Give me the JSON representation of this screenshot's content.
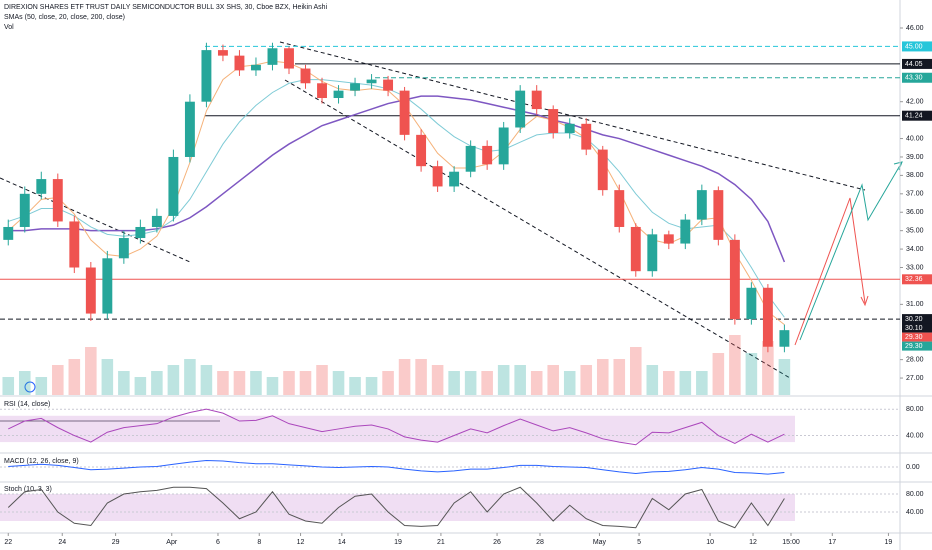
{
  "chart_data": {
    "type": "candlestick",
    "title": "DIREXION SHARES ETF TRUST DAILY SEMICONDUCTOR BULL 3X SHS, 30, Cboe BZX, Heikin Ashi",
    "sma_label": "SMAs (50, close, 20, close, 200, close)",
    "volume_label": "Vol",
    "up_color": "#26a69a",
    "down_color": "#ef5350",
    "xlim": [
      -0.5,
      54
    ],
    "ylim": [
      26.08,
      47.52
    ],
    "xticks": [
      {
        "value": 0,
        "label": "22"
      },
      {
        "value": 3.27,
        "label": "24"
      },
      {
        "value": 6.5,
        "label": "29"
      },
      {
        "value": 9.9,
        "label": "Apr"
      },
      {
        "value": 12.7,
        "label": "6"
      },
      {
        "value": 15.2,
        "label": "8"
      },
      {
        "value": 17.7,
        "label": "12"
      },
      {
        "value": 20.2,
        "label": "14"
      },
      {
        "value": 23.6,
        "label": "19"
      },
      {
        "value": 26.2,
        "label": "21"
      },
      {
        "value": 29.6,
        "label": "26"
      },
      {
        "value": 32.2,
        "label": "28"
      },
      {
        "value": 35.8,
        "label": "May"
      },
      {
        "value": 38.2,
        "label": "5"
      },
      {
        "value": 42.5,
        "label": "10"
      },
      {
        "value": 45.1,
        "label": "12"
      },
      {
        "value": 47.4,
        "label": "15:00"
      },
      {
        "value": 49.9,
        "label": "17"
      },
      {
        "value": 53.3,
        "label": "19"
      }
    ],
    "yticks": [
      {
        "value": 46,
        "label": "46.00"
      },
      {
        "value": 42,
        "label": "42.00"
      },
      {
        "value": 40,
        "label": "40.00"
      },
      {
        "value": 39,
        "label": "39.00"
      },
      {
        "value": 38,
        "label": "38.00"
      },
      {
        "value": 37,
        "label": "37.00"
      },
      {
        "value": 36,
        "label": "36.00"
      },
      {
        "value": 35,
        "label": "35.00"
      },
      {
        "value": 34,
        "label": "34.00"
      },
      {
        "value": 33,
        "label": "33.00"
      },
      {
        "value": 31,
        "label": "31.00"
      },
      {
        "value": 28,
        "label": "28.00"
      },
      {
        "value": 27,
        "label": "27.00"
      }
    ],
    "open": [
      34.5,
      35.2,
      37.0,
      37.8,
      35.5,
      33.0,
      30.5,
      33.5,
      34.6,
      35.2,
      35.8,
      39.0,
      42.0,
      44.8,
      44.5,
      43.7,
      44.0,
      44.9,
      43.8,
      43.0,
      42.2,
      42.6,
      43.0,
      43.2,
      42.6,
      40.2,
      38.5,
      37.4,
      38.2,
      39.6,
      38.6,
      40.6,
      42.6,
      41.6,
      40.3,
      40.8,
      39.4,
      37.2,
      35.2,
      32.8,
      34.8,
      34.3,
      35.6,
      37.2,
      34.5,
      30.2,
      31.9,
      28.7
    ],
    "high": [
      35.6,
      37.4,
      38.2,
      38.1,
      35.8,
      33.3,
      33.9,
      35.0,
      35.6,
      36.2,
      39.4,
      42.4,
      45.2,
      45.1,
      44.8,
      44.4,
      45.2,
      45.0,
      44.0,
      43.3,
      42.9,
      43.3,
      43.5,
      43.4,
      42.8,
      40.5,
      38.8,
      38.5,
      39.9,
      39.9,
      40.9,
      42.9,
      42.9,
      41.8,
      41.1,
      41.1,
      39.6,
      37.5,
      35.4,
      35.1,
      35.0,
      35.9,
      37.5,
      37.4,
      34.8,
      32.2,
      32.1,
      29.9
    ],
    "low": [
      34.2,
      34.9,
      36.7,
      35.2,
      32.7,
      30.1,
      30.2,
      33.2,
      34.3,
      34.9,
      35.5,
      38.7,
      41.7,
      44.2,
      43.4,
      43.4,
      43.7,
      43.5,
      42.7,
      41.9,
      41.9,
      42.3,
      42.7,
      42.3,
      39.9,
      38.2,
      37.1,
      37.1,
      37.9,
      38.3,
      38.3,
      40.3,
      41.3,
      40.0,
      40.0,
      39.1,
      36.9,
      34.9,
      32.5,
      32.5,
      34.0,
      34.0,
      35.3,
      34.2,
      29.9,
      29.9,
      28.4,
      28.4
    ],
    "close": [
      35.2,
      37.0,
      37.8,
      35.5,
      33.0,
      30.5,
      33.5,
      34.6,
      35.2,
      35.8,
      39.0,
      42.0,
      44.8,
      44.5,
      43.7,
      44.0,
      44.9,
      43.8,
      43.0,
      42.2,
      42.6,
      43.0,
      43.2,
      42.6,
      40.2,
      38.5,
      37.4,
      38.2,
      39.6,
      38.6,
      40.6,
      42.6,
      41.6,
      40.3,
      40.8,
      39.4,
      37.2,
      35.2,
      32.8,
      34.8,
      34.3,
      35.6,
      37.2,
      34.5,
      30.2,
      31.9,
      28.7,
      29.6
    ],
    "series": [
      {
        "color": "#7e57c2",
        "values": [
          35.0,
          35.0,
          35.1,
          35.1,
          35.1,
          35.0,
          35.0,
          35.0,
          35.0,
          35.1,
          35.3,
          35.7,
          36.3,
          37.0,
          37.7,
          38.4,
          39.1,
          39.7,
          40.2,
          40.7,
          41.0,
          41.3,
          41.6,
          41.9,
          42.1,
          42.3,
          42.3,
          42.2,
          42.1,
          41.9,
          41.7,
          41.5,
          41.3,
          41.0,
          40.8,
          40.5,
          40.2,
          40.0,
          39.7,
          39.4,
          39.1,
          38.8,
          38.5,
          38.1,
          37.5,
          36.7,
          35.5,
          33.3
        ]
      },
      {
        "color": "#7fcbd6",
        "values": [
          35.5,
          35.8,
          36.2,
          36.2,
          35.8,
          35.2,
          34.8,
          34.7,
          34.8,
          35.0,
          35.6,
          36.7,
          38.2,
          39.7,
          40.9,
          41.8,
          42.5,
          43.0,
          43.2,
          43.2,
          43.1,
          43.0,
          42.9,
          42.7,
          42.3,
          41.6,
          40.8,
          40.1,
          39.6,
          39.3,
          39.4,
          39.8,
          40.2,
          40.3,
          40.3,
          40.0,
          39.2,
          38.2,
          37.0,
          36.0,
          35.4,
          35.1,
          35.2,
          35.3,
          34.4,
          33.0,
          31.5,
          30.3
        ]
      },
      {
        "color": "#f5b27a",
        "values": [
          35.0,
          35.8,
          36.7,
          36.8,
          35.9,
          34.5,
          33.7,
          33.6,
          34.0,
          34.7,
          36.3,
          38.7,
          41.5,
          43.2,
          43.9,
          44.0,
          44.2,
          44.1,
          43.7,
          43.1,
          42.7,
          42.6,
          42.7,
          42.6,
          41.8,
          40.5,
          39.2,
          38.4,
          38.4,
          38.6,
          39.3,
          40.5,
          41.2,
          41.0,
          40.6,
          40.0,
          38.8,
          37.2,
          35.3,
          34.5,
          34.3,
          34.7,
          35.6,
          35.7,
          33.8,
          32.3,
          30.6,
          29.9
        ]
      }
    ],
    "volume": [
      3,
      4,
      3,
      5,
      6,
      8,
      6,
      4,
      3,
      4,
      5,
      6,
      5,
      4,
      4,
      4,
      3,
      4,
      4,
      5,
      4,
      3,
      3,
      4,
      6,
      6,
      5,
      4,
      4,
      4,
      5,
      5,
      4,
      5,
      4,
      5,
      6,
      6,
      8,
      5,
      4,
      4,
      4,
      7,
      10,
      7,
      9,
      6
    ],
    "levels": [
      {
        "value": 45,
        "label": "45.00",
        "color": "#26c6da",
        "style": "dashed"
      },
      {
        "value": 44.05,
        "label": "44.05",
        "color": "#131722",
        "style": "solid"
      },
      {
        "value": 43.3,
        "label": "43.30",
        "color": "#26a69a",
        "style": "dashed"
      },
      {
        "value": 41.24,
        "label": "41.24",
        "color": "#131722",
        "style": "solid"
      },
      {
        "value": 32.36,
        "label": "32.36",
        "color": "#ef5350",
        "style": "solid"
      },
      {
        "value": 30.2,
        "label": "30.20",
        "color": "#131722",
        "style": "dashed"
      }
    ],
    "tags": [
      {
        "value": 30.1,
        "label": "30.10",
        "color": "#131722"
      },
      {
        "value": 29.3,
        "label": "29.30",
        "color": "#ef5350"
      },
      {
        "value": 29.3,
        "label": "29.30",
        "color": "#26a69a"
      }
    ],
    "rsi": {
      "title": "RSI (14, close)",
      "color": "#ab47bc",
      "ylim": [
        18,
        97
      ],
      "band": [
        30,
        70
      ],
      "yticks": [
        {
          "value": 80,
          "label": "80.00"
        },
        {
          "value": 40,
          "label": "40.00"
        }
      ],
      "values": [
        50,
        62,
        66,
        52,
        40,
        30,
        45,
        52,
        55,
        58,
        68,
        75,
        80,
        74,
        62,
        63,
        70,
        58,
        52,
        46,
        50,
        54,
        56,
        50,
        38,
        33,
        30,
        40,
        50,
        44,
        55,
        65,
        56,
        47,
        52,
        44,
        35,
        30,
        26,
        45,
        44,
        52,
        60,
        40,
        28,
        42,
        30,
        42
      ]
    },
    "macd": {
      "title": "MACD (12, 26, close, 9)",
      "color": "#2962ff",
      "ylim": [
        -2.2,
        2.2
      ],
      "yticks": [
        {
          "value": 0,
          "label": "0.00"
        }
      ],
      "values": [
        0.1,
        0.3,
        0.5,
        0.3,
        -0.1,
        -0.5,
        -0.4,
        -0.2,
        0,
        0.1,
        0.5,
        0.9,
        1.2,
        1.1,
        0.8,
        0.6,
        0.6,
        0.4,
        0.2,
        0,
        -0.1,
        0,
        0.1,
        0,
        -0.4,
        -0.7,
        -0.9,
        -0.7,
        -0.4,
        -0.4,
        -0.1,
        0.3,
        0.3,
        0.1,
        0,
        -0.1,
        -0.5,
        -0.9,
        -1.2,
        -0.9,
        -0.8,
        -0.5,
        -0.1,
        -0.4,
        -1.0,
        -1.1,
        -1.3,
        -1.0
      ]
    },
    "stoch": {
      "title": "Stoch (10, 3, 3)",
      "color": "#555555",
      "ylim": [
        0,
        100
      ],
      "band": [
        20,
        80
      ],
      "yticks": [
        {
          "value": 80,
          "label": "80.00"
        },
        {
          "value": 40,
          "label": "40.00"
        }
      ],
      "values": [
        50,
        85,
        90,
        40,
        15,
        10,
        60,
        80,
        85,
        88,
        95,
        95,
        92,
        60,
        25,
        40,
        85,
        35,
        20,
        15,
        50,
        75,
        80,
        40,
        10,
        8,
        10,
        60,
        85,
        40,
        80,
        95,
        60,
        20,
        55,
        25,
        10,
        8,
        5,
        70,
        45,
        80,
        90,
        20,
        5,
        60,
        10,
        70
      ]
    }
  }
}
